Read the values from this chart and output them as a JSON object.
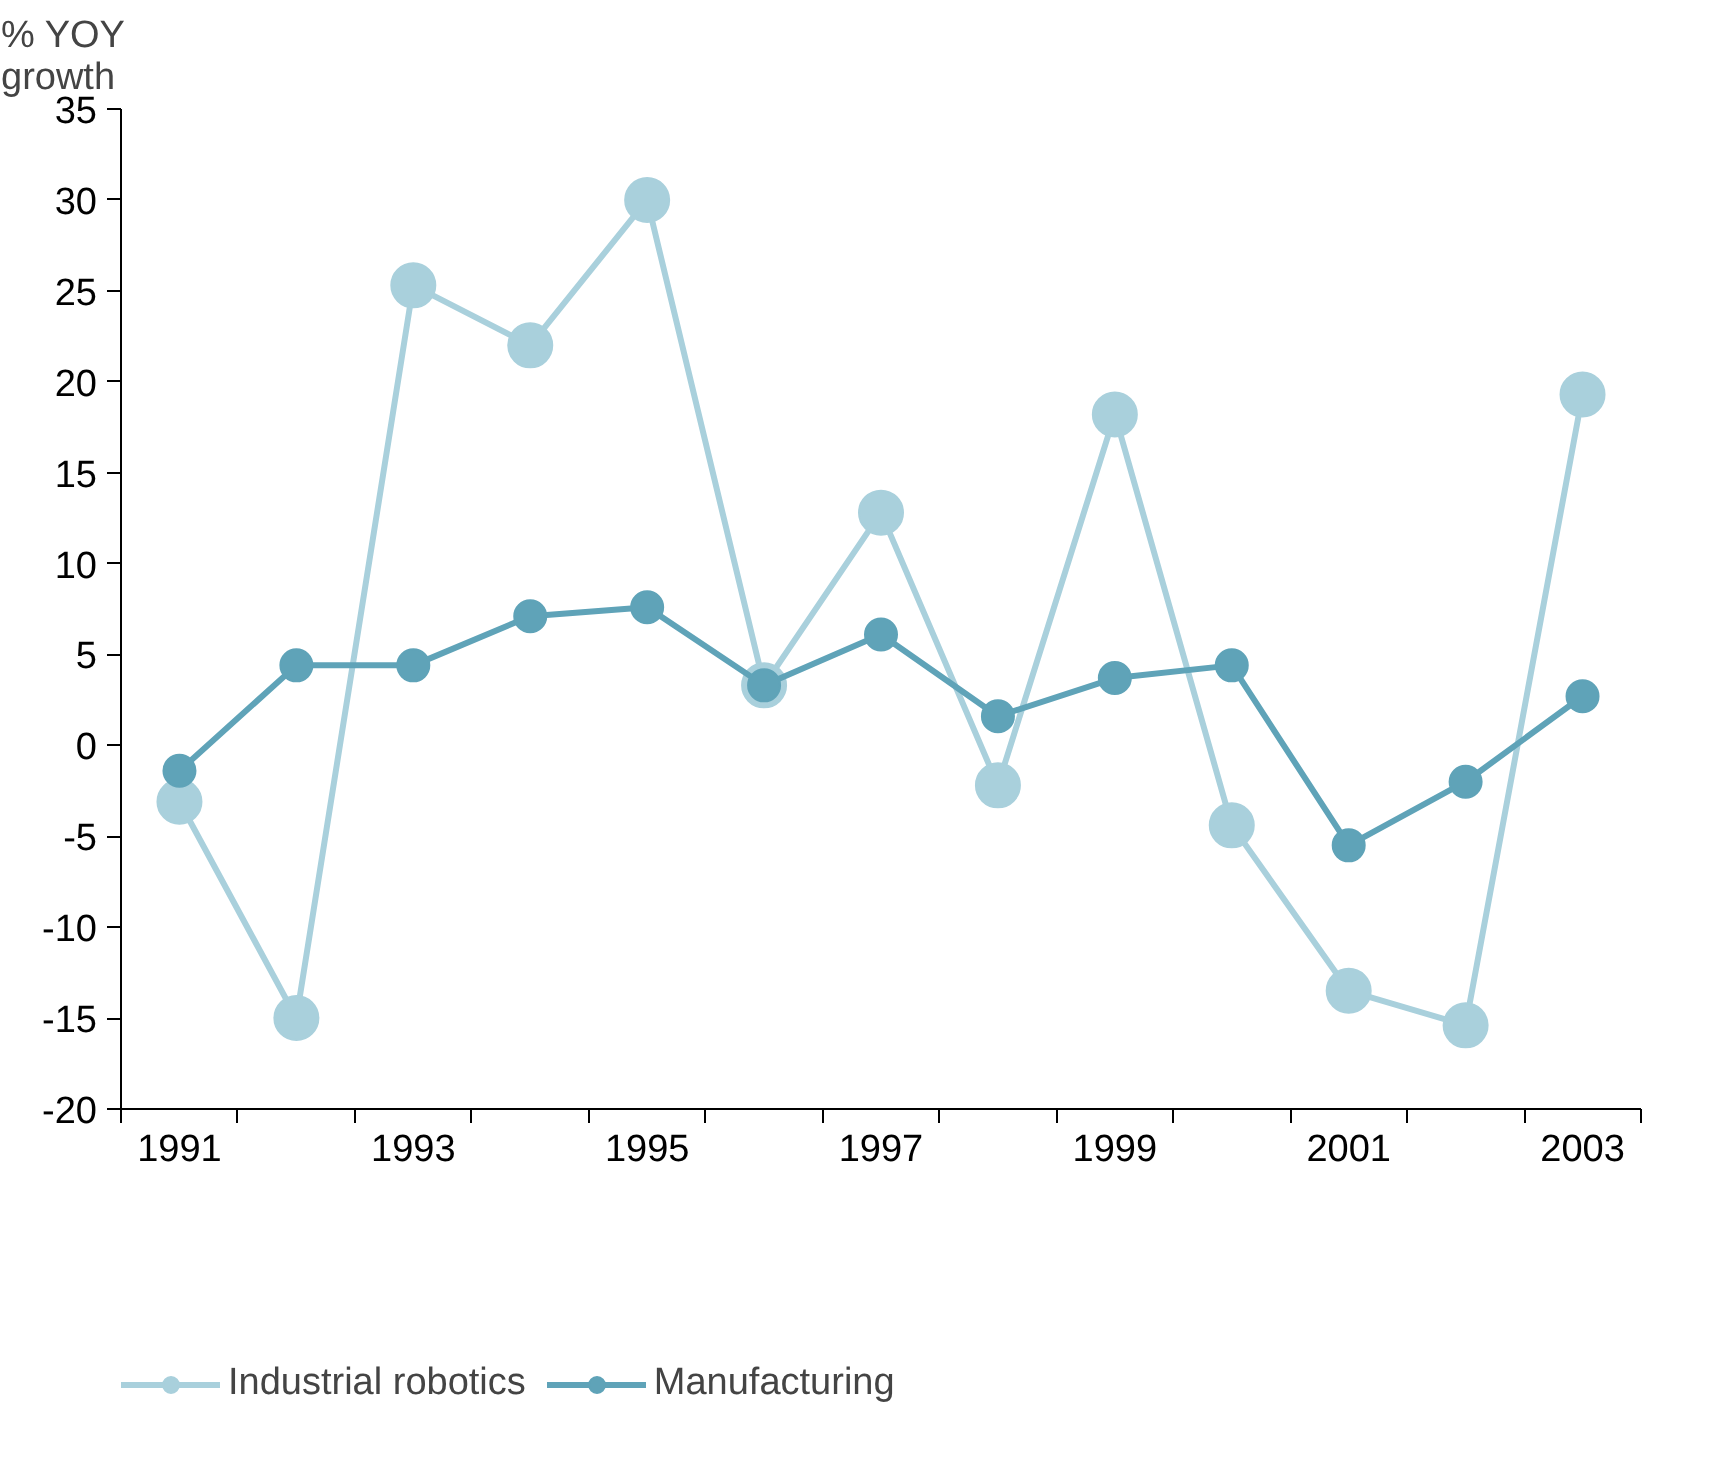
{
  "chart_data": {
    "type": "line",
    "ylabel": "% YOY growth",
    "categories": [
      "1991",
      null,
      "1993",
      null,
      "1995",
      null,
      "1997",
      null,
      "1999",
      null,
      "2001",
      null,
      "2003"
    ],
    "series": [
      {
        "name": "Industrial robotics",
        "color": "#a9d0dc",
        "values": [
          -3.1,
          -15,
          25.3,
          22,
          30,
          3.3,
          12.8,
          -2.2,
          18.2,
          -4.4,
          -13.5,
          -15.4,
          19.3
        ]
      },
      {
        "name": "Manufacturing",
        "color": "#5fa3b8",
        "values": [
          -1.4,
          4.4,
          4.4,
          7.1,
          7.6,
          3.3,
          6.1,
          1.6,
          3.7,
          4.4,
          -5.5,
          -2.0,
          2.7
        ]
      }
    ],
    "ylim": [
      -20,
      35
    ],
    "yticks": [
      -20,
      -15,
      -10,
      -5,
      0,
      5,
      10,
      15,
      20,
      25,
      30,
      35
    ],
    "grid": false,
    "legend": "bottom left",
    "marker": "circle",
    "line_style": "solid"
  }
}
